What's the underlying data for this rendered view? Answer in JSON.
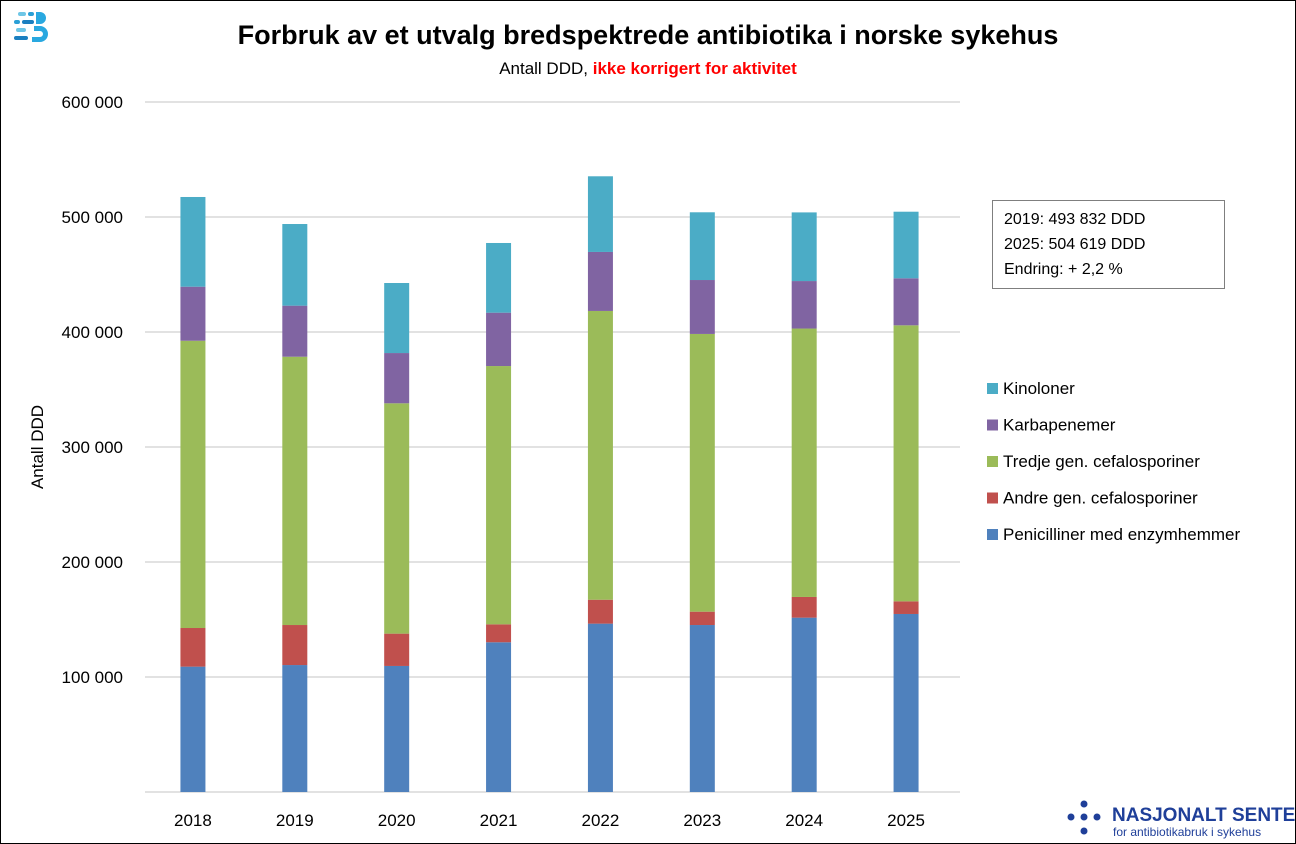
{
  "title": "Forbruk av et utvalg bredspektrede antibiotika i norske sykehus",
  "subtitle_plain": "Antall DDD, ",
  "subtitle_highlight": "ikke korrigert for aktivitet",
  "colors": {
    "highlight": "#ff0000",
    "grid": "#d9d9d9"
  },
  "annotation": [
    "2019: 493 832 DDD",
    "2025: 504 619 DDD",
    "Endring: + 2,2 %"
  ],
  "logo_left": {
    "icon": "sykehus-s-logo-icon"
  },
  "logo_right": {
    "name": "NASJONALT SENTER",
    "tagline": "for antibiotikabruk i sykehus"
  },
  "chart_data": {
    "type": "bar",
    "stacked": true,
    "title": "Forbruk av et utvalg bredspektrede antibiotika i norske sykehus",
    "xlabel": "",
    "ylabel": "Antall DDD",
    "ylim": [
      0,
      600000
    ],
    "yticks": [
      100000,
      200000,
      300000,
      400000,
      500000,
      600000
    ],
    "ytick_labels": [
      "100 000",
      "200 000",
      "300 000",
      "400 000",
      "500 000",
      "600 000"
    ],
    "grid": true,
    "legend_position": "right",
    "categories": [
      "2018",
      "2019",
      "2020",
      "2021",
      "2022",
      "2023",
      "2024",
      "2025"
    ],
    "series": [
      {
        "name": "Penicilliner med enzymhemmer",
        "color": "#4f81bd",
        "values": [
          109000,
          110400,
          109600,
          130200,
          146400,
          145200,
          151600,
          154800
        ]
      },
      {
        "name": "Andre gen. cefalosporiner",
        "color": "#c0504d",
        "values": [
          33600,
          34800,
          28100,
          15600,
          20800,
          11600,
          18000,
          11000
        ]
      },
      {
        "name": "Tredje gen. cefalosporiner",
        "color": "#9bbb59",
        "values": [
          249800,
          233300,
          200300,
          224600,
          251100,
          241500,
          233400,
          240000
        ]
      },
      {
        "name": "Karbapenemer",
        "color": "#8064a2",
        "values": [
          47000,
          44400,
          43700,
          46400,
          51300,
          46900,
          41300,
          40900
        ]
      },
      {
        "name": "Kinoloner",
        "color": "#4bacc6",
        "values": [
          78000,
          71000,
          60900,
          60600,
          65800,
          58900,
          59700,
          57900
        ]
      }
    ]
  }
}
